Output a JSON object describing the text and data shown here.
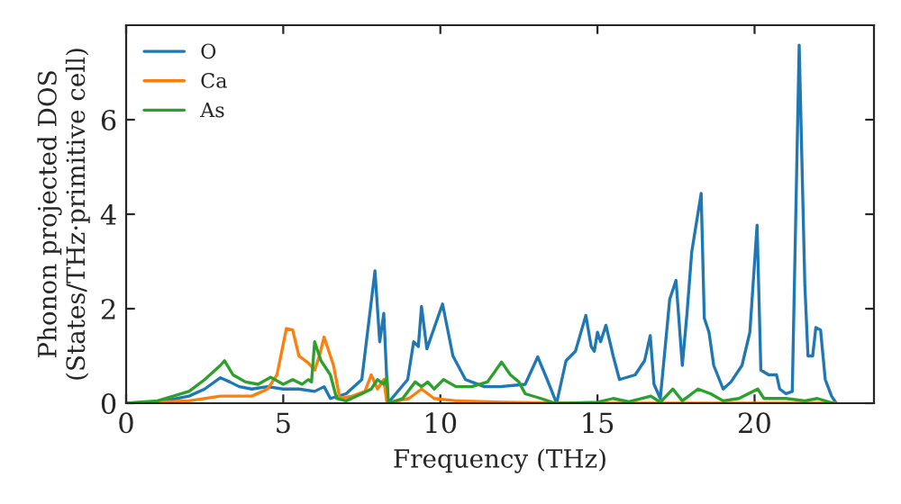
{
  "chart_data": {
    "type": "line",
    "xlabel": "Frequency (THz)",
    "ylabel": "Phonon projected DOS\n(States/THz·primitive cell)",
    "xlim": [
      0,
      23.8
    ],
    "ylim": [
      0,
      8
    ],
    "xticks": [
      0,
      5,
      10,
      15,
      20
    ],
    "yticks": [
      0,
      2,
      4,
      6
    ],
    "grid": false,
    "legend": "top left",
    "series": [
      {
        "name": "O",
        "color": "#1f77b4",
        "x": [
          0,
          1,
          2,
          2.5,
          3,
          3.3,
          3.6,
          4,
          4.5,
          5,
          5.5,
          6,
          6.3,
          6.5,
          7,
          7.5,
          7.92,
          8.07,
          8.2,
          8.33,
          8.96,
          9.15,
          9.3,
          9.4,
          9.57,
          10.07,
          10.4,
          10.8,
          11.4,
          11.9,
          12.7,
          13.1,
          13.4,
          13.7,
          14.0,
          14.3,
          14.63,
          14.8,
          14.9,
          15.0,
          15.1,
          15.27,
          15.5,
          15.7,
          16.2,
          16.5,
          16.68,
          16.8,
          17.0,
          17.3,
          17.5,
          17.7,
          17.85,
          18.0,
          18.3,
          18.4,
          18.55,
          18.7,
          19.0,
          19.25,
          19.6,
          19.85,
          20.08,
          20.2,
          20.45,
          20.7,
          20.8,
          21.0,
          21.2,
          21.42,
          21.6,
          21.7,
          21.85,
          21.95,
          22.1,
          22.25,
          22.45,
          22.6
        ],
        "values": [
          0,
          0.02,
          0.15,
          0.3,
          0.54,
          0.45,
          0.35,
          0.3,
          0.35,
          0.3,
          0.3,
          0.25,
          0.35,
          0.1,
          0.2,
          0.5,
          2.8,
          1.3,
          1.9,
          0,
          0.5,
          1.3,
          1.2,
          2.05,
          1.15,
          2.1,
          1.0,
          0.5,
          0.35,
          0.35,
          0.4,
          0.98,
          0.5,
          0,
          0.9,
          1.1,
          1.86,
          1.2,
          1.1,
          1.5,
          1.3,
          1.65,
          1.0,
          0.5,
          0.6,
          0.9,
          1.43,
          0.4,
          0.1,
          2.2,
          2.6,
          0.8,
          1.9,
          3.2,
          4.44,
          1.8,
          1.5,
          0.8,
          0.3,
          0.45,
          0.8,
          1.5,
          3.77,
          0.7,
          0.6,
          0.6,
          0.3,
          0.2,
          0.25,
          7.58,
          2.5,
          1.0,
          1.0,
          1.6,
          1.55,
          0.5,
          0.15,
          0
        ]
      },
      {
        "name": "Ca",
        "color": "#ff7f0e",
        "x": [
          0,
          2,
          3,
          4,
          4.5,
          4.8,
          5.1,
          5.3,
          5.5,
          5.8,
          6.0,
          6.15,
          6.3,
          6.6,
          6.8,
          7.2,
          7.6,
          7.8,
          8.0,
          8.2,
          8.3,
          9.0,
          9.4,
          9.8,
          10.5,
          12,
          14,
          22.6
        ],
        "values": [
          0,
          0.05,
          0.15,
          0.15,
          0.3,
          0.6,
          1.58,
          1.55,
          1.0,
          0.85,
          0.7,
          1.0,
          1.4,
          0.8,
          0.1,
          0.15,
          0.25,
          0.6,
          0.3,
          0.5,
          0,
          0.1,
          0.3,
          0.1,
          0.05,
          0.02,
          0,
          0
        ]
      },
      {
        "name": "As",
        "color": "#2ca02c",
        "x": [
          0,
          1,
          2,
          2.5,
          3,
          3.13,
          3.4,
          3.8,
          4.2,
          4.6,
          5.0,
          5.3,
          5.6,
          5.8,
          5.9,
          6.0,
          6.2,
          6.5,
          6.7,
          7,
          7.5,
          7.8,
          8.0,
          8.2,
          8.3,
          8.35,
          8.8,
          9.2,
          9.4,
          9.6,
          9.8,
          10.1,
          10.5,
          11,
          11.5,
          11.95,
          12.23,
          12.5,
          12.7,
          13.2,
          13.65,
          14,
          15,
          15.5,
          16,
          16.7,
          17,
          17.4,
          17.7,
          18.2,
          18.6,
          19,
          19.5,
          20.1,
          20.3,
          21,
          21.6,
          22,
          22.5
        ],
        "values": [
          0,
          0.05,
          0.25,
          0.5,
          0.8,
          0.9,
          0.6,
          0.45,
          0.4,
          0.55,
          0.4,
          0.5,
          0.4,
          0.5,
          0.45,
          1.3,
          0.9,
          0.6,
          0.1,
          0.05,
          0.2,
          0.3,
          0.5,
          0.4,
          0.55,
          0,
          0.1,
          0.45,
          0.35,
          0.45,
          0.3,
          0.5,
          0.35,
          0.35,
          0.45,
          0.87,
          0.6,
          0.45,
          0.2,
          0.1,
          0,
          0,
          0.02,
          0.1,
          0.03,
          0.15,
          0.02,
          0.3,
          0.05,
          0.3,
          0.2,
          0.05,
          0.1,
          0.3,
          0.1,
          0.1,
          0.05,
          0.1,
          0
        ]
      }
    ]
  }
}
